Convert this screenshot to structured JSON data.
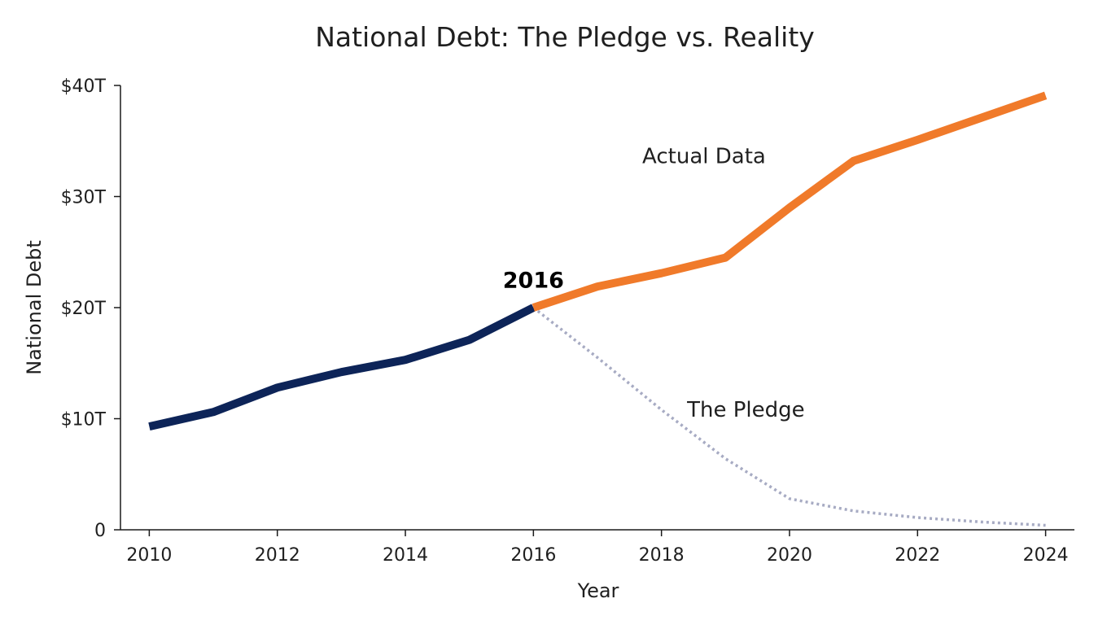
{
  "chart_data": {
    "type": "line",
    "title": "National Debt: The Pledge vs. Reality",
    "xlabel": "Year",
    "ylabel": "National Debt",
    "xlim": [
      2009.55,
      2024.45
    ],
    "ylim": [
      0,
      40
    ],
    "x_ticks": [
      2010,
      2012,
      2014,
      2016,
      2018,
      2020,
      2022,
      2024
    ],
    "x_tick_labels": [
      "2010",
      "2012",
      "2014",
      "2016",
      "2018",
      "2020",
      "2022",
      "2024"
    ],
    "y_ticks": [
      0,
      10,
      20,
      30,
      40
    ],
    "y_tick_labels": [
      "0",
      "$10T",
      "$20T",
      "$30T",
      "$40T"
    ],
    "grid": false,
    "legend": "none",
    "series": [
      {
        "color": "#0d2458",
        "style": "solid",
        "x": [
          2010,
          2011,
          2012,
          2013,
          2014,
          2015,
          2016
        ],
        "y": [
          9.3,
          10.6,
          12.8,
          14.2,
          15.3,
          17.1,
          20.0
        ]
      },
      {
        "name": "Actual Data",
        "color": "#f07a2a",
        "style": "solid",
        "x": [
          2016,
          2017,
          2018,
          2019,
          2020,
          2021,
          2022,
          2023,
          2024
        ],
        "y": [
          20.0,
          21.9,
          23.1,
          24.5,
          29.0,
          33.2,
          35.1,
          37.1,
          39.1
        ]
      },
      {
        "name": "The Pledge",
        "color": "#a7abc3",
        "style": "dotted",
        "x": [
          2016,
          2017,
          2018,
          2019,
          2020,
          2021,
          2022,
          2023,
          2024
        ],
        "y": [
          20.0,
          15.5,
          10.8,
          6.4,
          2.8,
          1.7,
          1.1,
          0.7,
          0.4
        ]
      }
    ],
    "annotations": [
      {
        "text": "Actual Data",
        "x": 2017.7,
        "y": 33.0,
        "weight": "normal"
      },
      {
        "text": "The Pledge",
        "x": 2018.4,
        "y": 10.2,
        "weight": "normal"
      },
      {
        "text": "2016",
        "x": 2016.0,
        "y": 21.8,
        "weight": "bold"
      }
    ]
  }
}
